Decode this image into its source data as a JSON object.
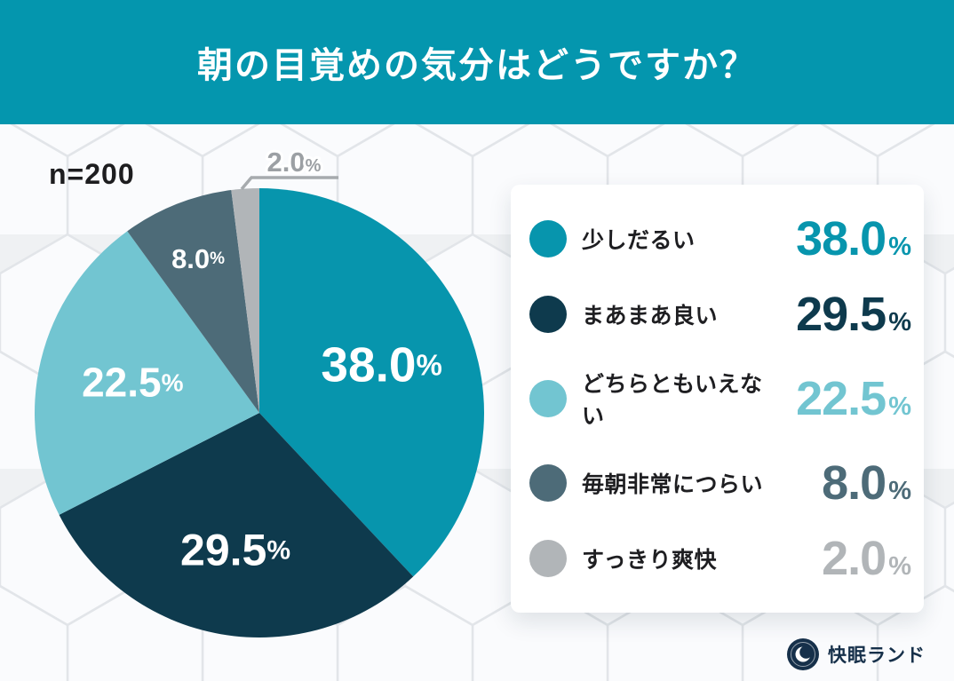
{
  "header": {
    "title": "朝の目覚めの気分はどうですか？"
  },
  "chart_data": {
    "type": "pie",
    "title": "朝の目覚めの気分はどうですか？",
    "sample_label": "n=200",
    "unit": "%",
    "start_angle_deg": -90,
    "direction": "clockwise",
    "legend_position": "right",
    "series": [
      {
        "name": "少しだるい",
        "value": 38.0,
        "value_text": "38.0",
        "color": "#0795ad",
        "label_color": "#ffffff"
      },
      {
        "name": "まあまあ良い",
        "value": 29.5,
        "value_text": "29.5",
        "color": "#0e3a4d",
        "label_color": "#ffffff"
      },
      {
        "name": "どちらともいえない",
        "value": 22.5,
        "value_text": "22.5",
        "color": "#72c5d1",
        "label_color": "#ffffff"
      },
      {
        "name": "毎朝非常につらい",
        "value": 8.0,
        "value_text": "8.0",
        "color": "#4d6b78",
        "label_color": "#ffffff"
      },
      {
        "name": "すっきり爽快",
        "value": 2.0,
        "value_text": "2.0",
        "color": "#b1b5b8",
        "label_color": "#9ca0a4",
        "label_outside": true
      }
    ]
  },
  "footer": {
    "brand": "快眠ランド"
  }
}
